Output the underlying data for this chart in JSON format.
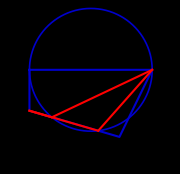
{
  "background_color": "#000000",
  "figsize": [
    1.8,
    1.74
  ],
  "dpi": 100,
  "points": {
    "S": [
      0.13,
      0.63
    ],
    "Eh": [
      0.13,
      0.38
    ],
    "B": [
      0.68,
      0.22
    ],
    "C": [
      0.88,
      0.63
    ]
  },
  "circle_color": "#0000cc",
  "trapezoid_color": "#0000cc",
  "red_line_color": "#ff0000",
  "line_width": 1.5,
  "circle_lw": 1.2,
  "xlim": [
    -0.05,
    1.05
  ],
  "ylim": [
    0.0,
    1.05
  ]
}
